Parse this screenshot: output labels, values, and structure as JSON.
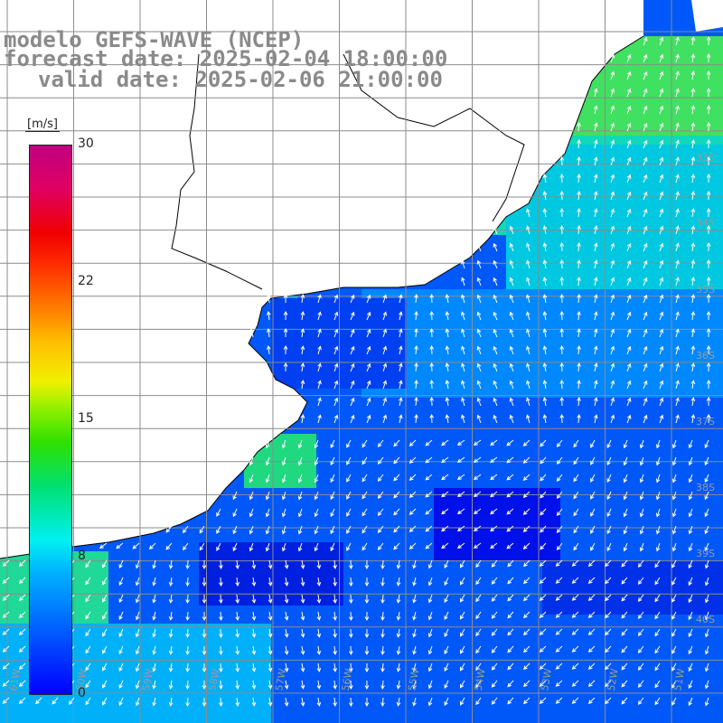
{
  "title": {
    "line1": "modelo GEFS-WAVE (NCEP)",
    "line2": "forecast date: 2025-02-04 18:00:00",
    "line3": "valid date: 2025-02-06 21:00:00"
  },
  "colorbar": {
    "unit": "[m/s]",
    "ticks": [
      {
        "label": "30",
        "value": 30
      },
      {
        "label": "22",
        "value": 22
      },
      {
        "label": "15",
        "value": 15
      },
      {
        "label": "8",
        "value": 8
      },
      {
        "label": "0",
        "value": 0
      }
    ],
    "range": [
      0,
      30
    ]
  },
  "map": {
    "lat_labels": [
      "33S",
      "34S",
      "35S",
      "36S",
      "37S",
      "38S",
      "39S",
      "40S"
    ],
    "lon_labels": [
      "61W",
      "60W",
      "59W",
      "58W",
      "57W",
      "56W",
      "55W",
      "54W",
      "53W",
      "52W",
      "51W"
    ],
    "land_color": "#ffffff",
    "grid_color": "#8c8c8c",
    "arrow_color": "#ffffff"
  }
}
